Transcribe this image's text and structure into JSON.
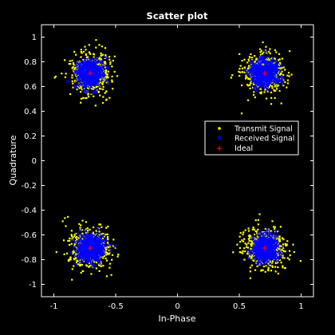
{
  "chart_data": {
    "type": "scatter",
    "title": "Scatter plot",
    "xlabel": "In-Phase",
    "ylabel": "Quadrature",
    "xlim": [
      -1.1,
      1.1
    ],
    "ylim": [
      -1.1,
      1.1
    ],
    "xticks": [
      -1,
      -0.5,
      0,
      0.5,
      1
    ],
    "xtick_labels": [
      "-1",
      "-0.5",
      "0",
      "0.5",
      "1"
    ],
    "yticks": [
      1,
      0.8,
      0.6,
      0.4,
      0.2,
      0,
      -0.2,
      -0.4,
      -0.6,
      -0.8,
      -1
    ],
    "ytick_labels": [
      "1",
      "0.8",
      "0.6",
      "0.4",
      "0.2",
      "0",
      "-0.2",
      "-0.4",
      "-0.6",
      "-0.8",
      "-1"
    ],
    "grid": false,
    "legend_position": "right",
    "background": "#000000",
    "axes_color": "#ffffff",
    "series": [
      {
        "name": "Transmit Signal",
        "marker": "dot",
        "color": "#ffff00",
        "points_per_cluster": 450,
        "spread_std": 0.085,
        "centers": [
          [
            -0.707,
            0.707
          ],
          [
            0.707,
            0.707
          ],
          [
            -0.707,
            -0.707
          ],
          [
            0.707,
            -0.707
          ]
        ]
      },
      {
        "name": "Received Signal",
        "marker": "x",
        "color": "#0000ff",
        "points_per_cluster": 450,
        "spread_std": 0.05,
        "centers": [
          [
            -0.707,
            0.707
          ],
          [
            0.707,
            0.707
          ],
          [
            -0.707,
            -0.707
          ],
          [
            0.707,
            -0.707
          ]
        ]
      },
      {
        "name": "Ideal",
        "marker": "plus",
        "color": "#ff0000",
        "points": [
          [
            -0.707,
            0.707
          ],
          [
            0.707,
            0.707
          ],
          [
            -0.707,
            -0.707
          ],
          [
            0.707,
            -0.707
          ]
        ]
      }
    ]
  }
}
